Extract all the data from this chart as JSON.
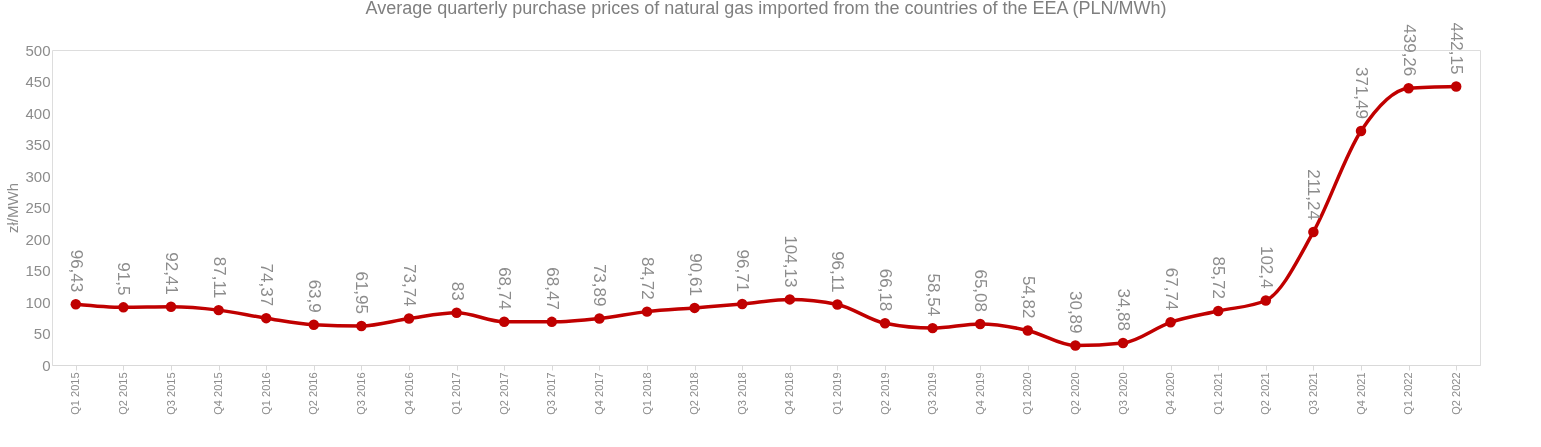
{
  "chart_data": {
    "type": "line",
    "title": "Average quarterly purchase prices of natural gas imported from the countries of the EEA (PLN/MWh)",
    "ylabel": "zł/MWh",
    "categories": [
      "Q1 2015",
      "Q2 2015",
      "Q3 2015",
      "Q4 2015",
      "Q1 2016",
      "Q2 2016",
      "Q3 2016",
      "Q4 2016",
      "Q1 2017",
      "Q2 2017",
      "Q3 2017",
      "Q4 2017",
      "Q1 2018",
      "Q2 2018",
      "Q3 2018",
      "Q4 2018",
      "Q1 2019",
      "Q2 2019",
      "Q3 2019",
      "Q4 2019",
      "Q1 2020",
      "Q2 2020",
      "Q3 2020",
      "Q4 2020",
      "Q1 2021",
      "Q2 2021",
      "Q3 2021",
      "Q4 2021",
      "Q1 2022",
      "Q2 2022"
    ],
    "series": [
      {
        "color": "#c00000",
        "values": [
          96.43,
          91.5,
          92.41,
          87.11,
          74.37,
          63.9,
          61.95,
          73.74,
          83,
          68.74,
          68.47,
          73.89,
          84.72,
          90.61,
          96.71,
          104.13,
          96.11,
          66.18,
          58.54,
          65.08,
          54.82,
          30.89,
          34.88,
          67.74,
          85.72,
          102.4,
          211.24,
          371.49,
          439.26,
          442.15
        ],
        "value_labels": [
          "96,43",
          "91,5",
          "92,41",
          "87,11",
          "74,37",
          "63,9",
          "61,95",
          "73,74",
          "83",
          "68,74",
          "68,47",
          "73,89",
          "84,72",
          "90,61",
          "96,71",
          "104,13",
          "96,11",
          "66,18",
          "58,54",
          "65,08",
          "54,82",
          "30,89",
          "34,88",
          "67,74",
          "85,72",
          "102,4",
          "211,24",
          "371,49",
          "439,26",
          "442,15"
        ]
      }
    ],
    "ylim": [
      0,
      500
    ],
    "yticks": [
      0,
      50,
      100,
      150,
      200,
      250,
      300,
      350,
      400,
      450,
      500
    ],
    "grid": false,
    "marker": "circle",
    "line_style": "solid"
  }
}
